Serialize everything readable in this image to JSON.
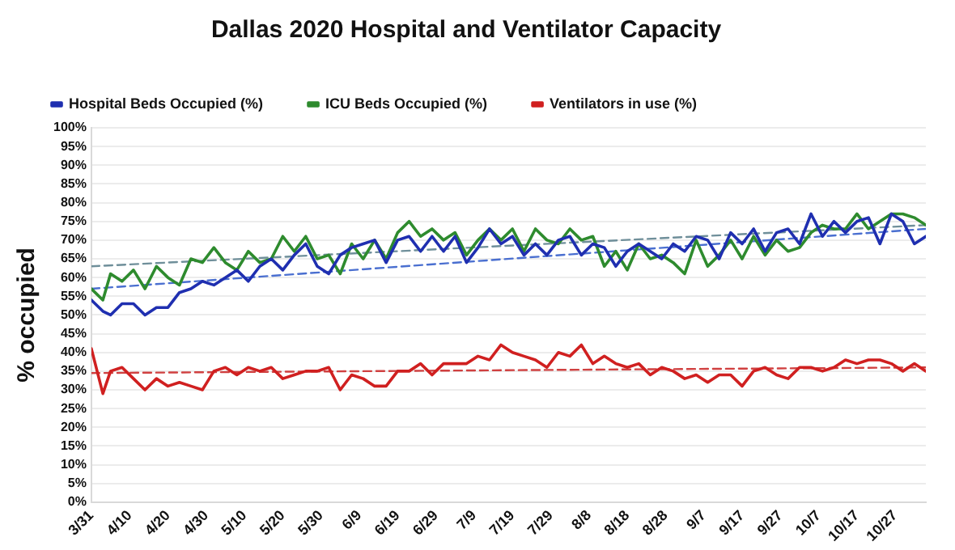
{
  "chart_data": {
    "type": "line",
    "title": "Dallas 2020 Hospital and Ventilator Capacity",
    "ylabel": "% occupied",
    "x": [
      "2020-03-31",
      "2020-04-03",
      "2020-04-05",
      "2020-04-08",
      "2020-04-11",
      "2020-04-14",
      "2020-04-17",
      "2020-04-20",
      "2020-04-23",
      "2020-04-26",
      "2020-04-29",
      "2020-05-02",
      "2020-05-05",
      "2020-05-08",
      "2020-05-11",
      "2020-05-14",
      "2020-05-17",
      "2020-05-20",
      "2020-05-23",
      "2020-05-26",
      "2020-05-29",
      "2020-06-01",
      "2020-06-04",
      "2020-06-07",
      "2020-06-10",
      "2020-06-13",
      "2020-06-16",
      "2020-06-19",
      "2020-06-22",
      "2020-06-25",
      "2020-06-28",
      "2020-07-01",
      "2020-07-04",
      "2020-07-07",
      "2020-07-10",
      "2020-07-13",
      "2020-07-16",
      "2020-07-19",
      "2020-07-22",
      "2020-07-25",
      "2020-07-28",
      "2020-07-31",
      "2020-08-03",
      "2020-08-06",
      "2020-08-09",
      "2020-08-12",
      "2020-08-15",
      "2020-08-18",
      "2020-08-21",
      "2020-08-24",
      "2020-08-27",
      "2020-08-30",
      "2020-09-02",
      "2020-09-05",
      "2020-09-08",
      "2020-09-11",
      "2020-09-14",
      "2020-09-17",
      "2020-09-20",
      "2020-09-23",
      "2020-09-26",
      "2020-09-29",
      "2020-10-02",
      "2020-10-05",
      "2020-10-08",
      "2020-10-11",
      "2020-10-14",
      "2020-10-17",
      "2020-10-20",
      "2020-10-23",
      "2020-10-26",
      "2020-10-29",
      "2020-11-01",
      "2020-11-04"
    ],
    "series": [
      {
        "name": "Hospital Beds Occupied (%)",
        "color": "#1f2fb0",
        "values": [
          54,
          51,
          50,
          53,
          53,
          50,
          52,
          52,
          56,
          57,
          59,
          58,
          60,
          62,
          59,
          63,
          65,
          62,
          66,
          69,
          63,
          61,
          66,
          68,
          69,
          70,
          64,
          70,
          71,
          67,
          71,
          67,
          71,
          64,
          68,
          73,
          69,
          71,
          66,
          69,
          66,
          70,
          71,
          66,
          69,
          68,
          63,
          67,
          69,
          67,
          65,
          69,
          67,
          71,
          70,
          65,
          72,
          69,
          73,
          67,
          72,
          73,
          69,
          77,
          71,
          75,
          72,
          75,
          76,
          69,
          77,
          75,
          69,
          71
        ]
      },
      {
        "name": "ICU Beds Occupied (%)",
        "color": "#2e8b2e",
        "values": [
          57,
          54,
          61,
          59,
          62,
          57,
          63,
          60,
          58,
          65,
          64,
          68,
          64,
          62,
          67,
          64,
          65,
          71,
          67,
          71,
          65,
          66,
          61,
          69,
          65,
          70,
          65,
          72,
          75,
          71,
          73,
          70,
          72,
          66,
          70,
          73,
          70,
          73,
          67,
          73,
          70,
          69,
          73,
          70,
          71,
          63,
          67,
          62,
          69,
          65,
          66,
          64,
          61,
          70,
          63,
          66,
          70,
          65,
          71,
          66,
          70,
          67,
          68,
          72,
          74,
          73,
          73,
          77,
          73,
          75,
          77,
          77,
          76,
          74
        ]
      },
      {
        "name": "Ventilators in use (%)",
        "color": "#d02020",
        "values": [
          41,
          29,
          35,
          36,
          33,
          30,
          33,
          31,
          32,
          31,
          30,
          35,
          36,
          34,
          36,
          35,
          36,
          33,
          34,
          35,
          35,
          36,
          30,
          34,
          33,
          31,
          31,
          35,
          35,
          37,
          34,
          37,
          37,
          37,
          39,
          38,
          42,
          40,
          39,
          38,
          36,
          40,
          39,
          42,
          37,
          39,
          37,
          36,
          37,
          34,
          36,
          35,
          33,
          34,
          32,
          34,
          34,
          31,
          35,
          36,
          34,
          33,
          36,
          36,
          35,
          36,
          38,
          37,
          38,
          38,
          37,
          35,
          37,
          35
        ]
      },
      {
        "type": "line",
        "color": "#4a6fd0",
        "line_style": "dashed",
        "x": [
          "2020-03-31",
          "2020-11-04"
        ],
        "values": [
          57,
          73
        ]
      },
      {
        "type": "line",
        "color": "#6f8f9a",
        "line_style": "dashed",
        "x": [
          "2020-03-31",
          "2020-11-04"
        ],
        "values": [
          63,
          74
        ]
      },
      {
        "type": "line",
        "color": "#d04040",
        "line_style": "dashed",
        "x": [
          "2020-03-31",
          "2020-11-04"
        ],
        "values": [
          34.5,
          36
        ]
      }
    ],
    "xlim": [
      "2020-03-31",
      "2020-11-04"
    ],
    "xticks": [
      {
        "value": "2020-03-31",
        "label": "3/31"
      },
      {
        "value": "2020-04-10",
        "label": "4/10"
      },
      {
        "value": "2020-04-20",
        "label": "4/20"
      },
      {
        "value": "2020-04-30",
        "label": "4/30"
      },
      {
        "value": "2020-05-10",
        "label": "5/10"
      },
      {
        "value": "2020-05-20",
        "label": "5/20"
      },
      {
        "value": "2020-05-30",
        "label": "5/30"
      },
      {
        "value": "2020-06-09",
        "label": "6/9"
      },
      {
        "value": "2020-06-19",
        "label": "6/19"
      },
      {
        "value": "2020-06-29",
        "label": "6/29"
      },
      {
        "value": "2020-07-09",
        "label": "7/9"
      },
      {
        "value": "2020-07-19",
        "label": "7/19"
      },
      {
        "value": "2020-07-29",
        "label": "7/29"
      },
      {
        "value": "2020-08-08",
        "label": "8/8"
      },
      {
        "value": "2020-08-18",
        "label": "8/18"
      },
      {
        "value": "2020-08-28",
        "label": "8/28"
      },
      {
        "value": "2020-09-07",
        "label": "9/7"
      },
      {
        "value": "2020-09-17",
        "label": "9/17"
      },
      {
        "value": "2020-09-27",
        "label": "9/27"
      },
      {
        "value": "2020-10-07",
        "label": "10/7"
      },
      {
        "value": "2020-10-17",
        "label": "10/17"
      },
      {
        "value": "2020-10-27",
        "label": "10/27"
      }
    ],
    "ylim": [
      0,
      100
    ],
    "yticks": [
      {
        "value": 0,
        "label": "0%"
      },
      {
        "value": 5,
        "label": "5%"
      },
      {
        "value": 10,
        "label": "10%"
      },
      {
        "value": 15,
        "label": "15%"
      },
      {
        "value": 20,
        "label": "20%"
      },
      {
        "value": 25,
        "label": "25%"
      },
      {
        "value": 30,
        "label": "30%"
      },
      {
        "value": 35,
        "label": "35%"
      },
      {
        "value": 40,
        "label": "40%"
      },
      {
        "value": 45,
        "label": "45%"
      },
      {
        "value": 50,
        "label": "50%"
      },
      {
        "value": 55,
        "label": "55%"
      },
      {
        "value": 60,
        "label": "60%"
      },
      {
        "value": 65,
        "label": "65%"
      },
      {
        "value": 70,
        "label": "70%"
      },
      {
        "value": 75,
        "label": "75%"
      },
      {
        "value": 80,
        "label": "80%"
      },
      {
        "value": 85,
        "label": "85%"
      },
      {
        "value": 90,
        "label": "90%"
      },
      {
        "value": 95,
        "label": "95%"
      },
      {
        "value": 100,
        "label": "100%"
      }
    ],
    "grid": "y",
    "legend": "top left",
    "marker": "none",
    "line_style": "solid"
  }
}
